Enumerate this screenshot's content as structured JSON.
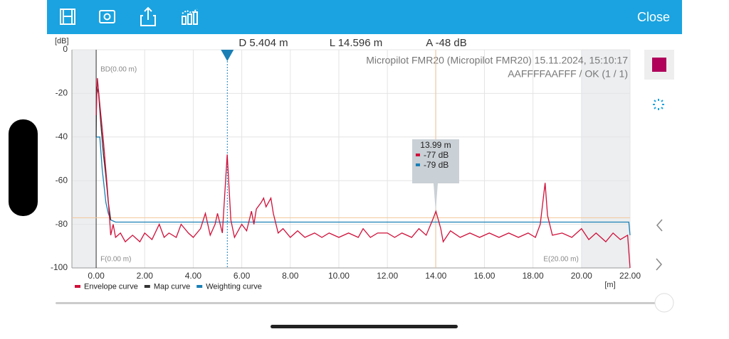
{
  "toolbar": {
    "close": "Close"
  },
  "header": {
    "length": "L 14.596 m",
    "amplitude": "A -48 dB"
  },
  "chart_data": {
    "type": "line",
    "info": [
      "Micropilot FMR20 (Micropilot FMR20) 15.11.2024, 15:10:17",
      "AAFFFFAAFFF / OK (1 / 1)"
    ],
    "xlabel": "[m]",
    "ylabel": "[dB]",
    "xlim": [
      -1,
      22
    ],
    "ylim": [
      -100,
      0
    ],
    "xticks": [
      {
        "value": 0,
        "label": "0.00"
      },
      {
        "value": 2,
        "label": "2.00"
      },
      {
        "value": 4,
        "label": "4.00"
      },
      {
        "value": 6,
        "label": "6.00"
      },
      {
        "value": 8,
        "label": "8.00"
      },
      {
        "value": 10,
        "label": "10.00"
      },
      {
        "value": 12,
        "label": "12.00"
      },
      {
        "value": 14,
        "label": "14.00"
      },
      {
        "value": 16,
        "label": "16.00"
      },
      {
        "value": 18,
        "label": "18.00"
      },
      {
        "value": 20,
        "label": "20.00"
      },
      {
        "value": 22,
        "label": "22.00"
      }
    ],
    "yticks": [
      0,
      -20,
      -40,
      -60,
      -80,
      -100
    ],
    "grid": true,
    "marker": {
      "value": 5.404,
      "label": "D 5.404 m",
      "color": "#1a7fb5"
    },
    "regions": {
      "start": {
        "value": 0,
        "top_label": "BD(0.00 m)",
        "bottom_label": "F(0.00 m)"
      },
      "end": {
        "value": 20,
        "label": "E(20.00 m)"
      }
    },
    "tooltip": {
      "x": 13.99,
      "x_label": "13.99 m",
      "entries": [
        {
          "value": -77,
          "label": "-77 dB",
          "color": "#d0103a"
        },
        {
          "value": -79,
          "label": "-79 dB",
          "color": "#1a7fb5"
        }
      ]
    },
    "series": [
      {
        "name": "Envelope curve",
        "color": "#d0103a",
        "x": [
          0,
          0.05,
          0.15,
          0.3,
          0.45,
          0.55,
          0.6,
          0.7,
          0.8,
          1.0,
          1.2,
          1.5,
          1.8,
          2.0,
          2.3,
          2.6,
          2.8,
          3.0,
          3.3,
          3.5,
          3.8,
          4.0,
          4.3,
          4.5,
          4.7,
          4.9,
          5.0,
          5.2,
          5.4,
          5.55,
          5.7,
          6.0,
          6.2,
          6.4,
          6.5,
          6.6,
          6.8,
          6.9,
          7.0,
          7.2,
          7.3,
          7.5,
          7.7,
          8.0,
          8.3,
          8.6,
          9.0,
          9.3,
          9.6,
          10.0,
          10.4,
          10.8,
          11.0,
          11.3,
          11.6,
          12.0,
          12.3,
          12.6,
          13.0,
          13.3,
          13.6,
          13.9,
          14.0,
          14.2,
          14.3,
          14.6,
          15.0,
          15.4,
          15.8,
          16.2,
          16.6,
          17.0,
          17.4,
          17.8,
          18.1,
          18.3,
          18.5,
          18.6,
          18.8,
          19.2,
          19.6,
          20.0,
          20.3,
          20.6,
          21.0,
          21.3,
          21.6,
          21.9,
          22.0
        ],
        "values": [
          -30,
          -13,
          -25,
          -42,
          -62,
          -77,
          -85,
          -80,
          -86,
          -84,
          -88,
          -85,
          -88,
          -84,
          -87,
          -80,
          -86,
          -84,
          -86,
          -80,
          -84,
          -86,
          -82,
          -75,
          -85,
          -80,
          -75,
          -84,
          -48,
          -78,
          -86,
          -80,
          -83,
          -74,
          -80,
          -73,
          -70,
          -68,
          -72,
          -68,
          -75,
          -84,
          -82,
          -86,
          -83,
          -86,
          -84,
          -86,
          -84,
          -86,
          -84,
          -86,
          -82,
          -86,
          -84,
          -84,
          -86,
          -84,
          -86,
          -82,
          -85,
          -77,
          -74,
          -82,
          -88,
          -83,
          -86,
          -84,
          -86,
          -84,
          -86,
          -84,
          -86,
          -84,
          -86,
          -80,
          -61,
          -76,
          -85,
          -84,
          -86,
          -82,
          -87,
          -84,
          -88,
          -84,
          -87,
          -85,
          -100
        ]
      },
      {
        "name": "Map curve",
        "color": "#333333",
        "x": [
          0,
          0.02,
          0.1,
          0.2,
          0.3,
          0.4,
          0.5,
          0.6
        ],
        "values": [
          -40,
          -17,
          -20,
          -35,
          -48,
          -58,
          -70,
          -78
        ]
      },
      {
        "name": "Weighting curve",
        "color": "#1a7fb5",
        "x": [
          0,
          0.15,
          0.25,
          0.4,
          0.5,
          0.6,
          0.8,
          21.95,
          22.0
        ],
        "values": [
          -40,
          -40,
          -55,
          -70,
          -75,
          -78,
          -79,
          -79,
          -85
        ]
      }
    ]
  }
}
